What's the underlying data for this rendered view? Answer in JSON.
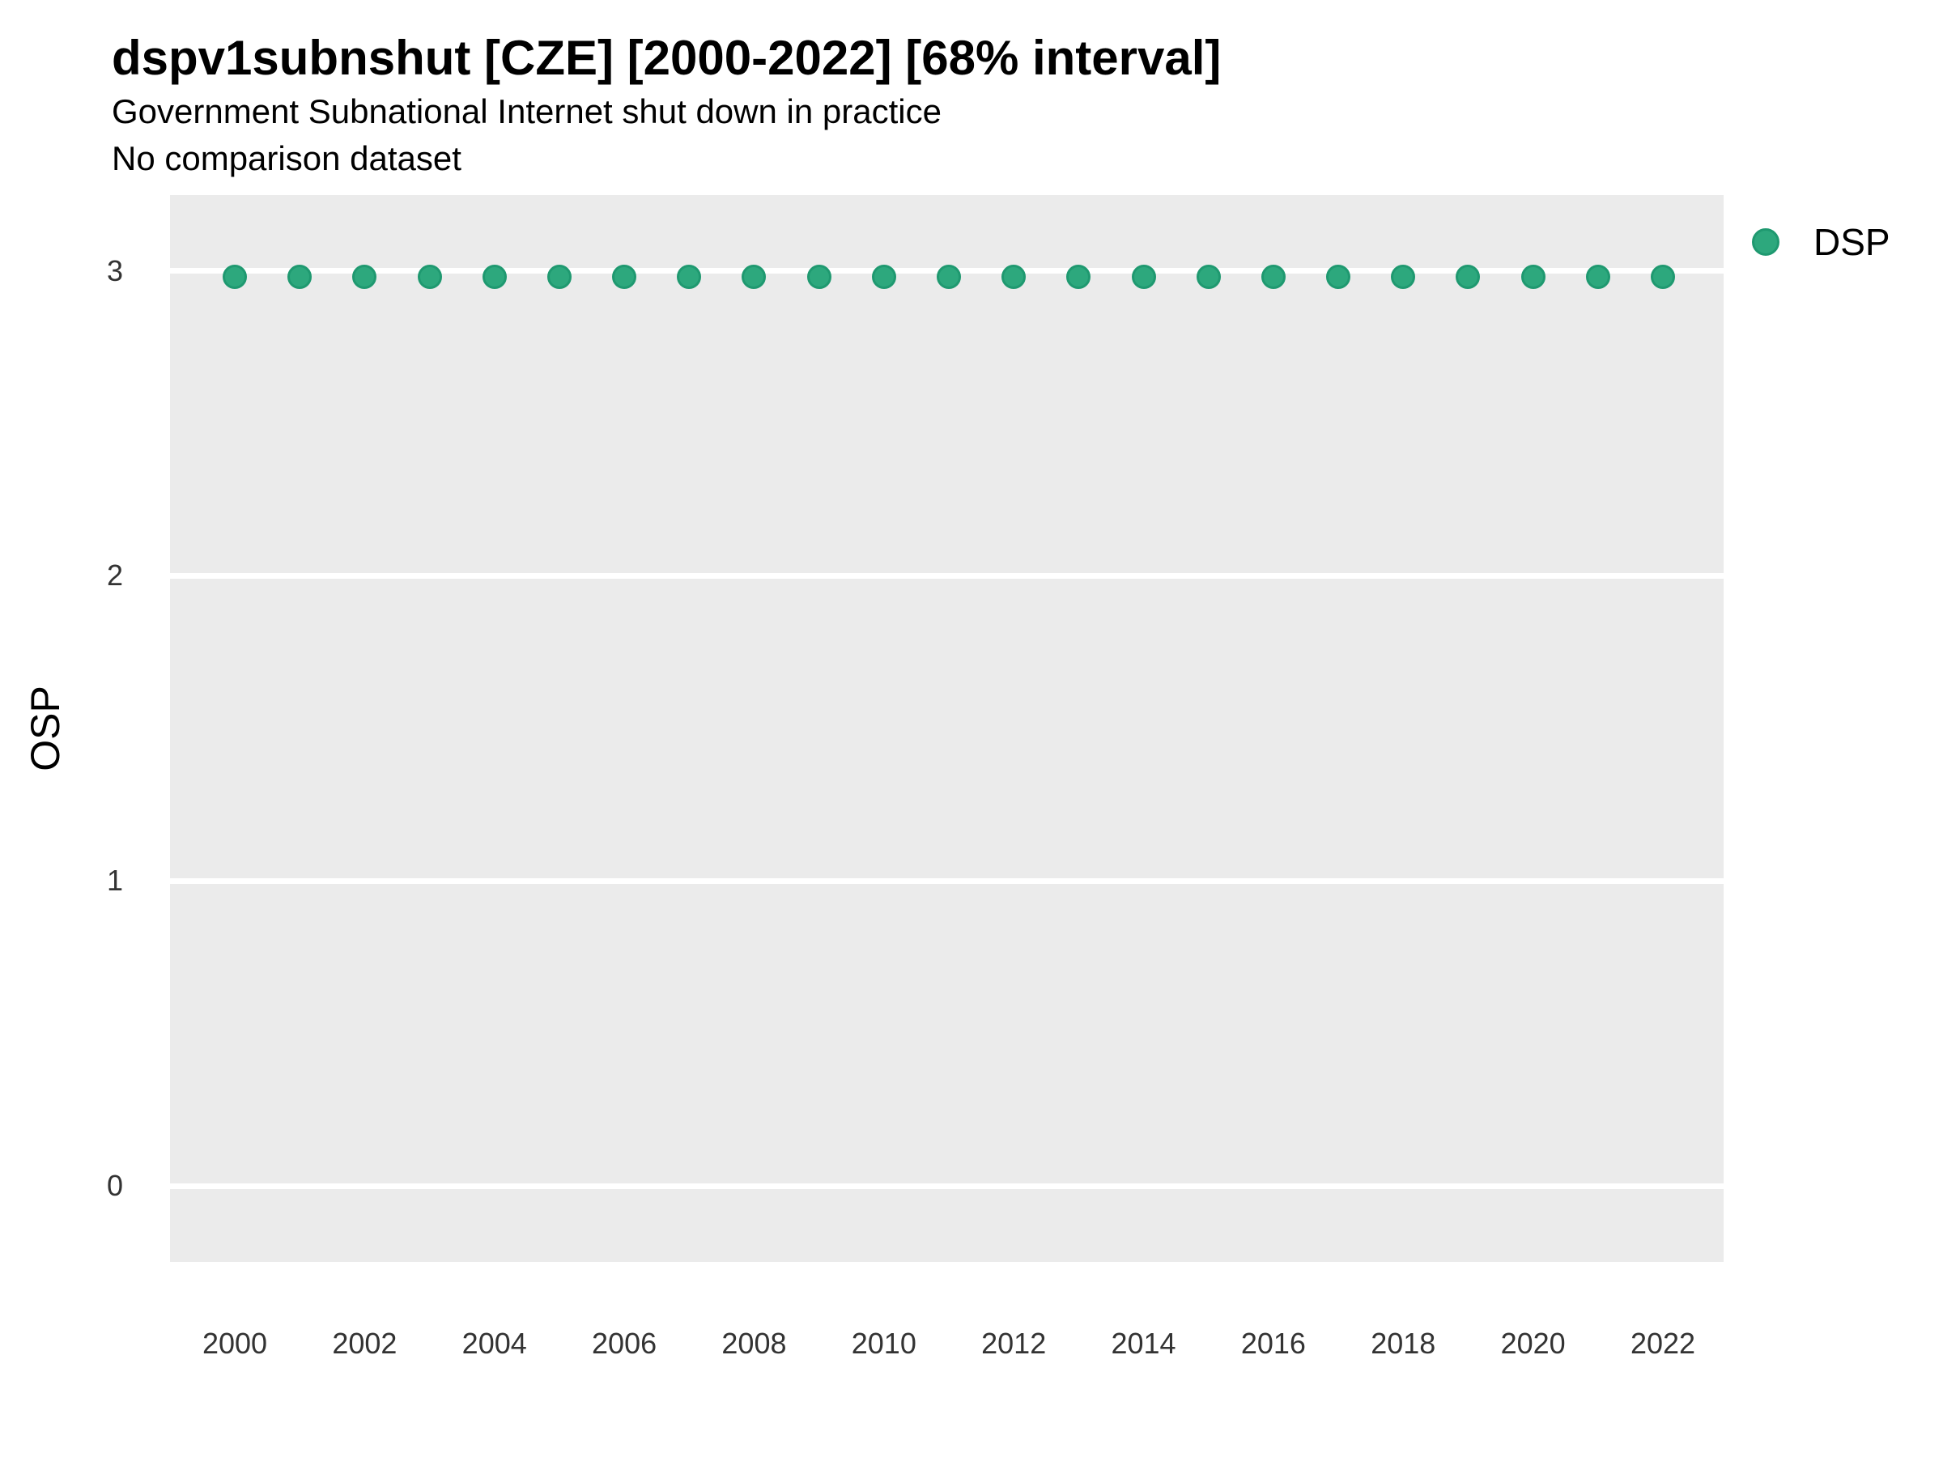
{
  "chart_data": {
    "type": "scatter",
    "title": "dspv1subnshut [CZE] [2000-2022] [68% interval]",
    "subtitle": "Government Subnational Internet shut down in practice",
    "note": "No comparison dataset",
    "xlabel": "",
    "ylabel": "OSP",
    "grid": "horizontal-major-only",
    "legend_position": "right-top",
    "x": [
      2000,
      2001,
      2002,
      2003,
      2004,
      2005,
      2006,
      2007,
      2008,
      2009,
      2010,
      2011,
      2012,
      2013,
      2014,
      2015,
      2016,
      2017,
      2018,
      2019,
      2020,
      2021,
      2022
    ],
    "series": [
      {
        "name": "DSP",
        "values": [
          2.98,
          2.98,
          2.98,
          2.98,
          2.98,
          2.98,
          2.98,
          2.98,
          2.98,
          2.98,
          2.98,
          2.98,
          2.98,
          2.98,
          2.98,
          2.98,
          2.98,
          2.98,
          2.98,
          2.98,
          2.98,
          2.98,
          2.98
        ],
        "color": "#2DA87D",
        "border_color": "#1F9970"
      }
    ],
    "xticks": [
      2000,
      2002,
      2004,
      2006,
      2008,
      2010,
      2012,
      2014,
      2016,
      2018,
      2020,
      2022
    ],
    "yticks": [
      0,
      1,
      2,
      3
    ],
    "xlim": [
      1999,
      2023
    ],
    "ylim": [
      -0.25,
      3.25
    ],
    "panel_bg": "#EBEBEB",
    "grid_color": "#FFFFFF",
    "tick_label_color": "#333333",
    "text_color": "#000000"
  }
}
